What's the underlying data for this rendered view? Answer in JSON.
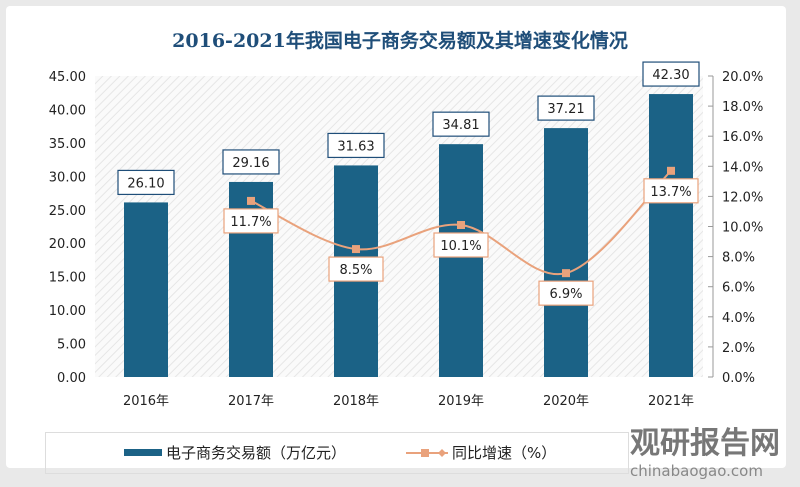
{
  "chart_data": {
    "type": "bar+line",
    "title": "2016-2021年我国电子商务交易额及其增速变化情况",
    "categories": [
      "2016年",
      "2017年",
      "2018年",
      "2019年",
      "2020年",
      "2021年"
    ],
    "series": [
      {
        "name": "电子商务交易额（万亿元）",
        "type": "bar",
        "axis": "left",
        "values": [
          26.1,
          29.16,
          31.63,
          34.81,
          37.21,
          42.3
        ],
        "labels": [
          "26.10",
          "29.16",
          "31.63",
          "34.81",
          "37.21",
          "42.30"
        ],
        "color": "#1b6286"
      },
      {
        "name": "同比增速（%）",
        "type": "line",
        "axis": "right",
        "values": [
          null,
          11.7,
          8.5,
          10.1,
          6.9,
          13.7
        ],
        "labels": [
          "",
          "11.7%",
          "8.5%",
          "10.1%",
          "6.9%",
          "13.7%"
        ],
        "color": "#e9a27c"
      }
    ],
    "y_left": {
      "range": [
        0,
        45
      ],
      "ticks": [
        "0.00",
        "5.00",
        "10.00",
        "15.00",
        "20.00",
        "25.00",
        "30.00",
        "35.00",
        "40.00",
        "45.00"
      ]
    },
    "y_right": {
      "range": [
        0,
        20
      ],
      "ticks": [
        "0.0%",
        "2.0%",
        "4.0%",
        "6.0%",
        "8.0%",
        "10.0%",
        "12.0%",
        "14.0%",
        "16.0%",
        "18.0%",
        "20.0%"
      ]
    },
    "grid": false,
    "legend": "bottom"
  },
  "watermark": {
    "cn": "观研报告网",
    "en": "chinabaogao.com"
  }
}
